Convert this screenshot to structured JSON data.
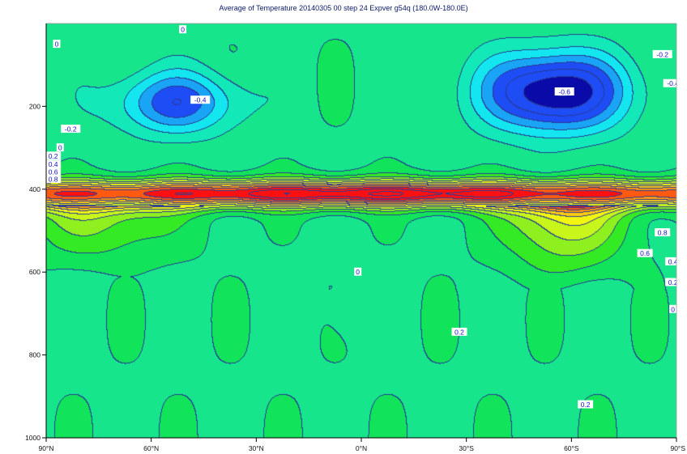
{
  "chart_data": {
    "type": "heatmap",
    "title": "Average of Temperature 20140305 00 step 24 Expver g54q (180.0W-180.0E)",
    "xlabel": "",
    "ylabel": "",
    "x_range": [
      90,
      -90
    ],
    "y_range": [
      0,
      1000
    ],
    "x_ticks": [
      {
        "value": 90,
        "label": "90°N"
      },
      {
        "value": 60,
        "label": "60°N"
      },
      {
        "value": 30,
        "label": "30°N"
      },
      {
        "value": 0,
        "label": "0°N"
      },
      {
        "value": -30,
        "label": "30°S"
      },
      {
        "value": -60,
        "label": "60°S"
      },
      {
        "value": -90,
        "label": "90°S"
      }
    ],
    "y_ticks": [
      {
        "value": 200,
        "label": "200"
      },
      {
        "value": 400,
        "label": "400"
      },
      {
        "value": 600,
        "label": "600"
      },
      {
        "value": 800,
        "label": "800"
      },
      {
        "value": 1000,
        "label": "1000"
      }
    ],
    "contour_step": 0.1,
    "color_scale": [
      {
        "value": -0.7,
        "color": "#0a0aa8"
      },
      {
        "value": -0.5,
        "color": "#1e4cf5"
      },
      {
        "value": -0.3,
        "color": "#1aa4f5"
      },
      {
        "value": -0.2,
        "color": "#14e6ef"
      },
      {
        "value": -0.1,
        "color": "#12e8b8"
      },
      {
        "value": 0.0,
        "color": "#16e58c"
      },
      {
        "value": 0.1,
        "color": "#11e35a"
      },
      {
        "value": 0.2,
        "color": "#34ea24"
      },
      {
        "value": 0.3,
        "color": "#8ef01e"
      },
      {
        "value": 0.4,
        "color": "#c8f51a"
      },
      {
        "value": 0.5,
        "color": "#f2f510"
      },
      {
        "value": 0.6,
        "color": "#ffcc10"
      },
      {
        "value": 0.7,
        "color": "#ff9810"
      },
      {
        "value": 0.8,
        "color": "#ff5a10"
      },
      {
        "value": 0.9,
        "color": "#ff1010"
      }
    ],
    "features": [
      {
        "kind": "min",
        "lat": 53,
        "p": 190,
        "amp": -0.44,
        "slat": 18,
        "sp": 75
      },
      {
        "kind": "min",
        "lat": -55,
        "p": 165,
        "amp": -0.72,
        "slat": 20,
        "sp": 95
      },
      {
        "kind": "min",
        "lat": 3,
        "p": 700,
        "amp": -0.06,
        "slat": 8,
        "sp": 60
      },
      {
        "kind": "band",
        "p": 410,
        "amp": 1.0,
        "sp": 32
      },
      {
        "kind": "tail",
        "lat": -58,
        "p_top": 440,
        "p_bottom": 640,
        "amp": 0.55,
        "slat": 17
      },
      {
        "kind": "tail",
        "lat": 75,
        "p_top": 440,
        "p_bottom": 610,
        "amp": 0.35,
        "slat": 22
      }
    ],
    "contour_labels": [
      {
        "value": -0.4,
        "text": "-0.4",
        "lat": 46,
        "p": 185
      },
      {
        "value": -0.2,
        "text": "-0.2",
        "lat": 83,
        "p": 255
      },
      {
        "value": -0.6,
        "text": "-0.6",
        "lat": -58,
        "p": 165
      },
      {
        "value": -0.2,
        "text": "-0.2",
        "lat": -86,
        "p": 75
      },
      {
        "value": -0.4,
        "text": "-0.4",
        "lat": -89,
        "p": 145
      },
      {
        "value": 0,
        "text": "0",
        "lat": 87,
        "p": 50
      },
      {
        "value": 0,
        "text": "0",
        "lat": 51,
        "p": 15
      },
      {
        "value": 0,
        "text": "0",
        "lat": 86,
        "p": 300
      },
      {
        "value": 0.2,
        "text": "0.2",
        "lat": 88,
        "p": 320
      },
      {
        "value": 0.4,
        "text": "0.4",
        "lat": 88,
        "p": 340
      },
      {
        "value": 0.6,
        "text": "0.6",
        "lat": 88,
        "p": 358
      },
      {
        "value": 0.8,
        "text": "0.8",
        "lat": 88,
        "p": 376
      },
      {
        "value": 0.8,
        "text": "0.8",
        "lat": -86,
        "p": 505
      },
      {
        "value": 0.6,
        "text": "0.6",
        "lat": -81,
        "p": 555
      },
      {
        "value": 0.4,
        "text": "0.4",
        "lat": -89,
        "p": 575
      },
      {
        "value": 0.2,
        "text": "0.2",
        "lat": -89,
        "p": 625
      },
      {
        "value": 0,
        "text": "0",
        "lat": -89,
        "p": 690
      },
      {
        "value": 0,
        "text": "0",
        "lat": 1,
        "p": 600
      },
      {
        "value": 0.2,
        "text": "0.2",
        "lat": -28,
        "p": 745
      },
      {
        "value": 0.2,
        "text": "0.2",
        "lat": -64,
        "p": 920
      }
    ]
  }
}
